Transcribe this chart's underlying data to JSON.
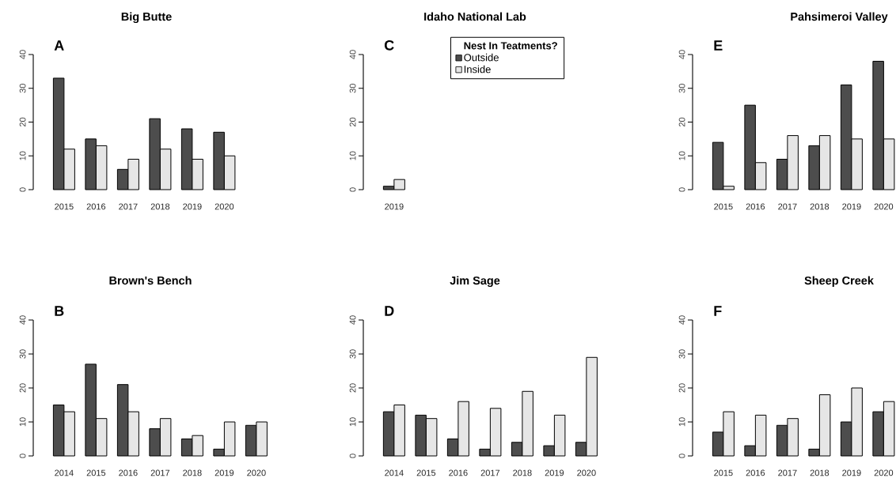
{
  "chart_data": [
    {
      "type": "bar",
      "title": "Big Butte",
      "annotations": [
        "A"
      ],
      "categories": [
        "2015",
        "2016",
        "2017",
        "2018",
        "2019",
        "2020"
      ],
      "series": [
        {
          "color": "#4d4d4d",
          "values": [
            33,
            15,
            6,
            21,
            18,
            17
          ]
        },
        {
          "color": "#e6e6e6",
          "values": [
            12,
            13,
            9,
            12,
            9,
            10
          ]
        }
      ],
      "ylim": [
        0,
        40
      ],
      "yticks": [
        0,
        10,
        20,
        30,
        40
      ]
    },
    {
      "type": "bar",
      "title": "Idaho National Lab",
      "annotations": [
        "C"
      ],
      "categories": [
        "2019"
      ],
      "series": [
        {
          "name": "Outside",
          "color": "#4d4d4d",
          "values": [
            1
          ]
        },
        {
          "name": "Inside",
          "color": "#e6e6e6",
          "values": [
            3
          ]
        }
      ],
      "ylim": [
        0,
        40
      ],
      "yticks": [
        0,
        10,
        20,
        30,
        40
      ],
      "legend": "top right",
      "legend_title": "Nest In Teatments?"
    },
    {
      "type": "bar",
      "title": "Pahsimeroi Valley",
      "annotations": [
        "E"
      ],
      "categories": [
        "2015",
        "2016",
        "2017",
        "2018",
        "2019",
        "2020"
      ],
      "series": [
        {
          "color": "#4d4d4d",
          "values": [
            14,
            25,
            9,
            13,
            31,
            38
          ]
        },
        {
          "color": "#e6e6e6",
          "values": [
            1,
            8,
            16,
            16,
            15,
            15
          ]
        }
      ],
      "ylim": [
        0,
        40
      ],
      "yticks": [
        0,
        10,
        20,
        30,
        40
      ]
    },
    {
      "type": "bar",
      "title": "Brown's Bench",
      "annotations": [
        "B"
      ],
      "categories": [
        "2014",
        "2015",
        "2016",
        "2017",
        "2018",
        "2019",
        "2020"
      ],
      "series": [
        {
          "color": "#4d4d4d",
          "values": [
            15,
            27,
            21,
            8,
            5,
            2,
            9
          ]
        },
        {
          "color": "#e6e6e6",
          "values": [
            13,
            11,
            13,
            11,
            6,
            10,
            10
          ]
        }
      ],
      "ylim": [
        0,
        40
      ],
      "yticks": [
        0,
        10,
        20,
        30,
        40
      ]
    },
    {
      "type": "bar",
      "title": "Jim Sage",
      "annotations": [
        "D"
      ],
      "categories": [
        "2014",
        "2015",
        "2016",
        "2017",
        "2018",
        "2019",
        "2020"
      ],
      "series": [
        {
          "color": "#4d4d4d",
          "values": [
            13,
            12,
            5,
            2,
            4,
            3,
            4
          ]
        },
        {
          "color": "#e6e6e6",
          "values": [
            15,
            11,
            16,
            14,
            19,
            12,
            29
          ]
        }
      ],
      "ylim": [
        0,
        40
      ],
      "yticks": [
        0,
        10,
        20,
        30,
        40
      ]
    },
    {
      "type": "bar",
      "title": "Sheep Creek",
      "annotations": [
        "F"
      ],
      "categories": [
        "2015",
        "2016",
        "2017",
        "2018",
        "2019",
        "2020"
      ],
      "series": [
        {
          "color": "#4d4d4d",
          "values": [
            7,
            3,
            9,
            2,
            10,
            13
          ]
        },
        {
          "color": "#e6e6e6",
          "values": [
            13,
            12,
            11,
            18,
            20,
            16
          ]
        }
      ],
      "ylim": [
        0,
        40
      ],
      "yticks": [
        0,
        10,
        20,
        30,
        40
      ]
    }
  ]
}
